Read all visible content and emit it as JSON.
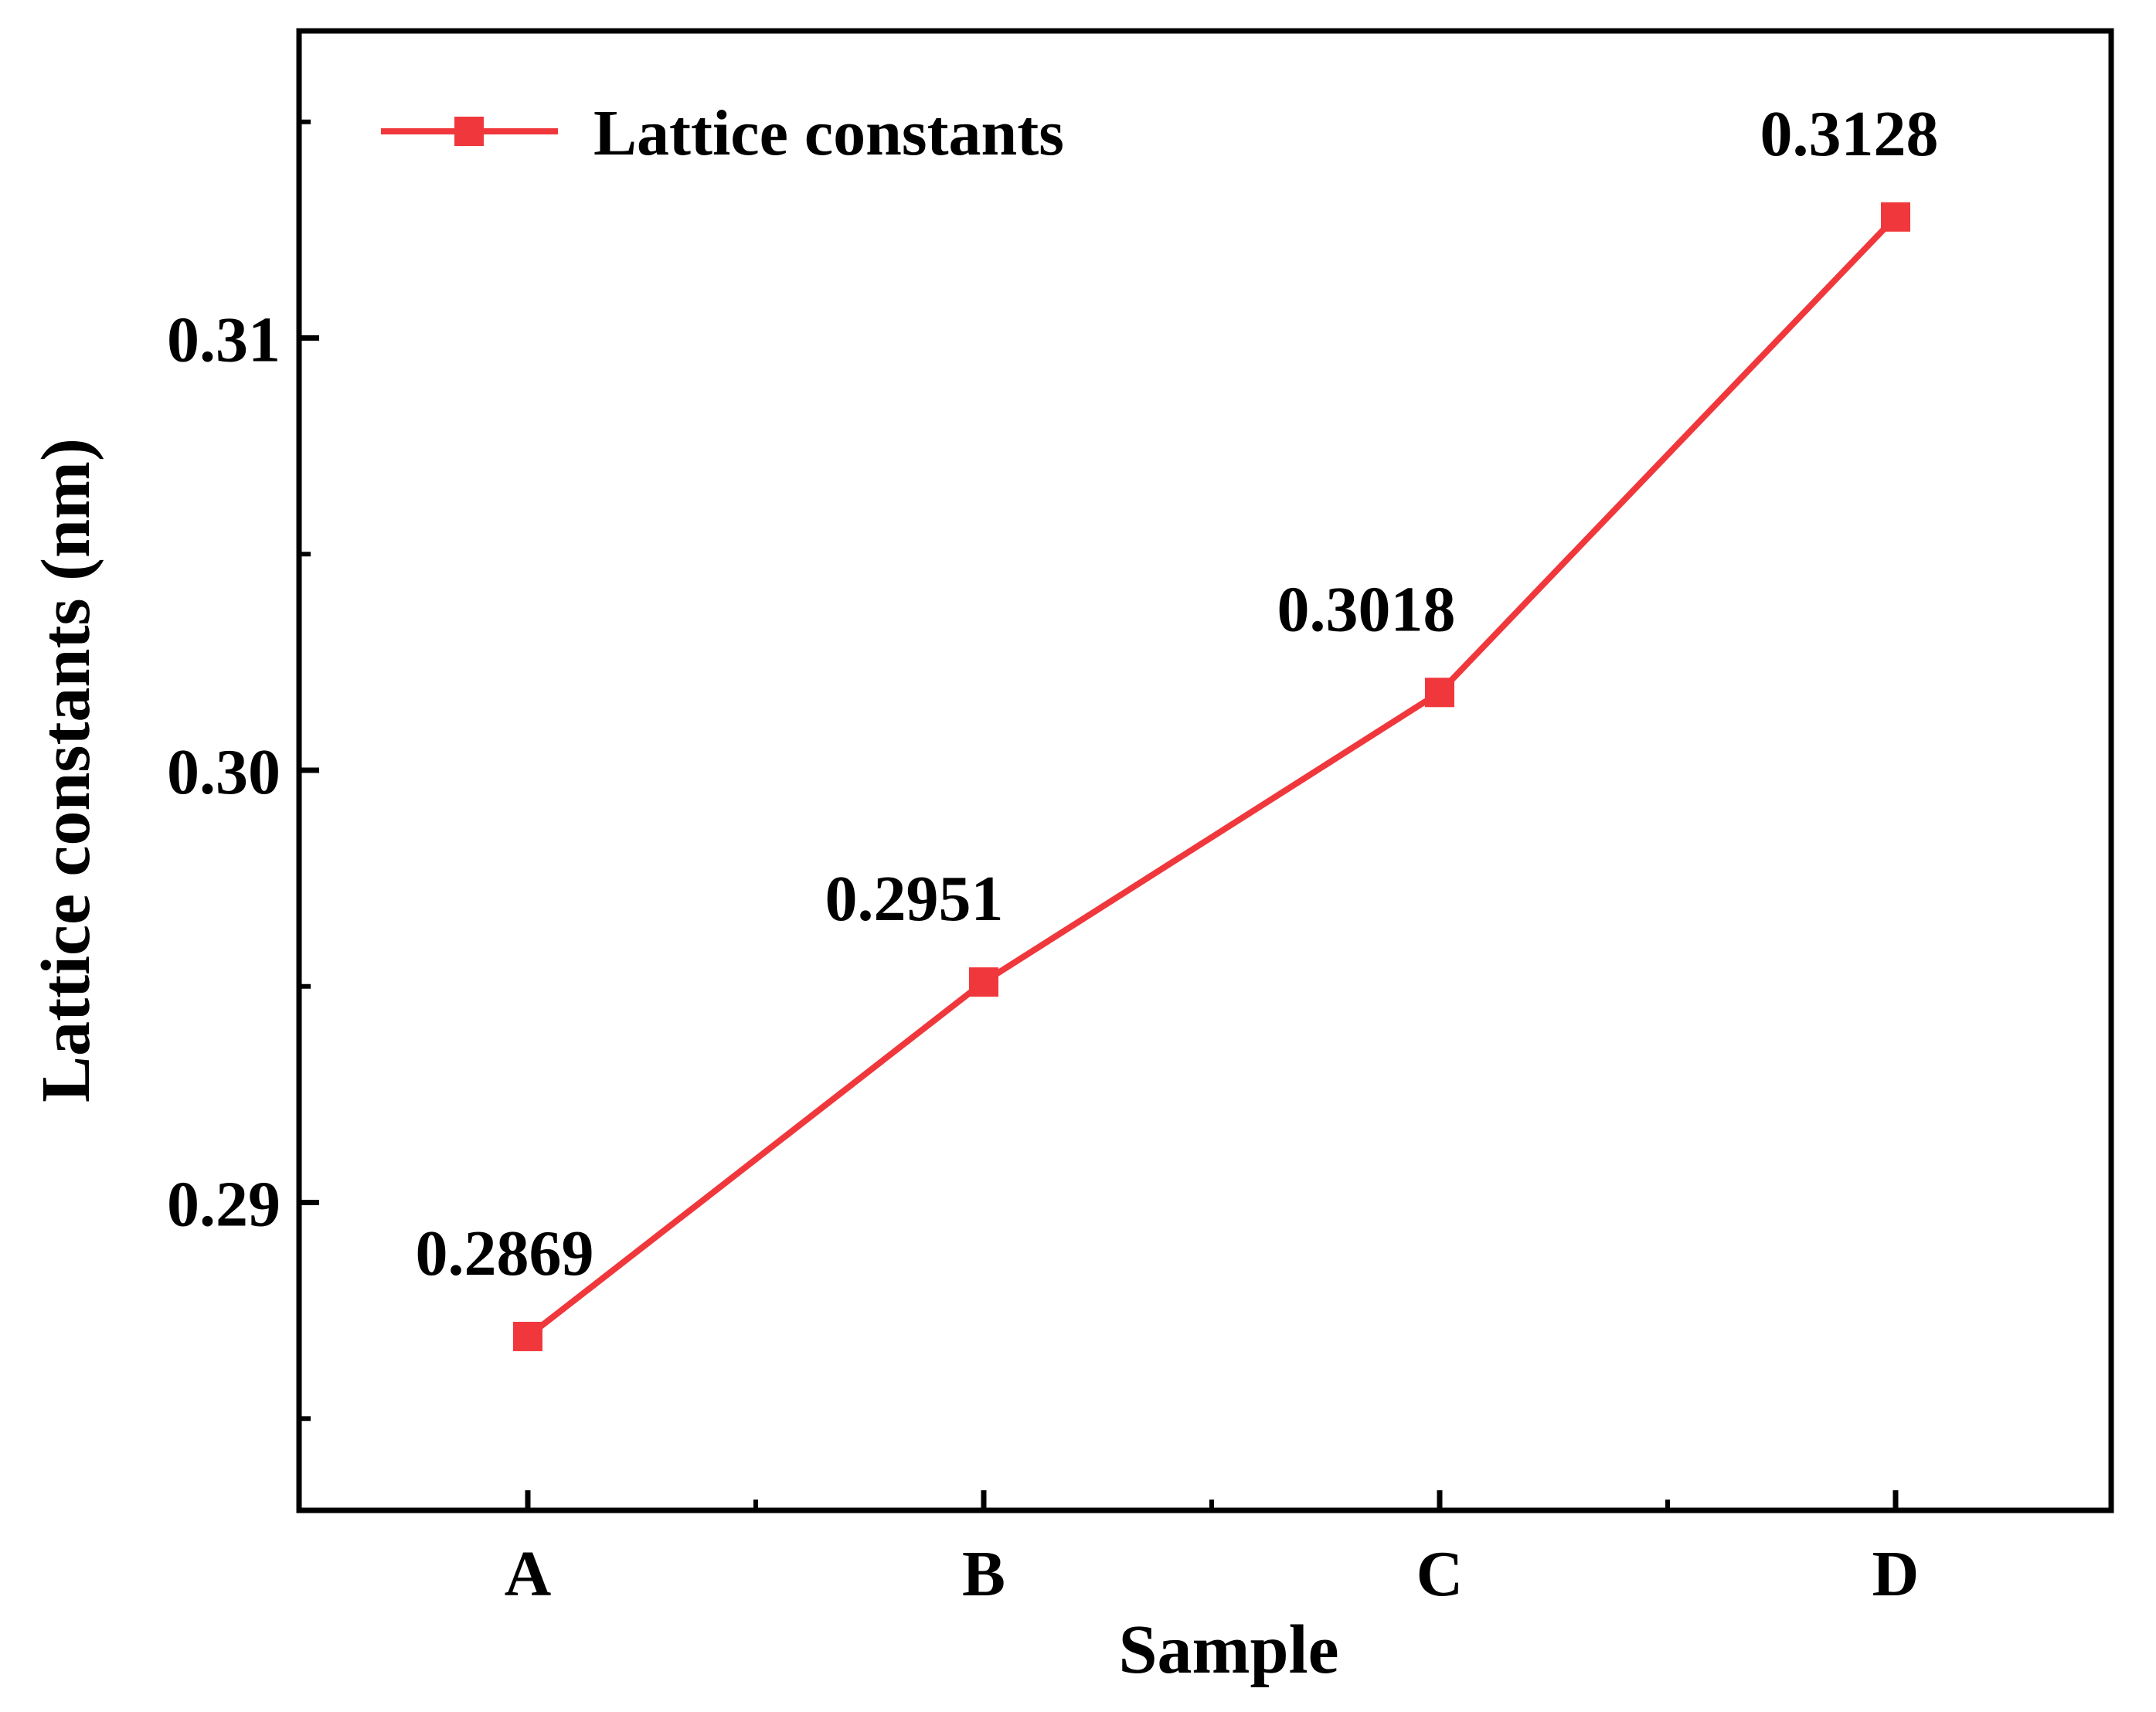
{
  "chart_data": {
    "type": "line",
    "categories": [
      "A",
      "B",
      "C",
      "D"
    ],
    "series": [
      {
        "name": "Lattice constants",
        "values": [
          0.2869,
          0.2951,
          0.3018,
          0.3128
        ],
        "color": "#f0383c",
        "marker": "square"
      }
    ],
    "data_labels": [
      "0.2869",
      "0.2951",
      "0.3018",
      "0.3128"
    ],
    "xlabel": "Sample",
    "ylabel": "Lattice constants (nm)",
    "ylim": [
      0.2835,
      0.3175
    ],
    "y_major_ticks": [
      0.29,
      0.3,
      0.31
    ],
    "y_tick_labels": [
      "0.29",
      "0.30",
      "0.31"
    ],
    "y_minor_ticks": [
      0.285,
      0.295,
      0.305,
      0.315
    ],
    "legend_placement": "top-left",
    "grid": false
  }
}
